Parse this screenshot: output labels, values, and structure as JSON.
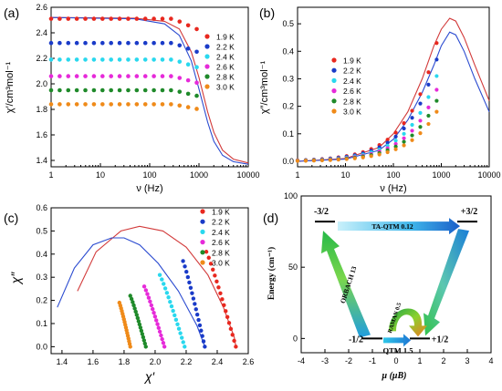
{
  "colors": {
    "1.9": "#e8281f",
    "2.2": "#1a3bc8",
    "2.4": "#29d8ee",
    "2.6": "#e62ad9",
    "2.8": "#1f8a2a",
    "3.0": "#ef8a19",
    "fit_red": "#d23a3a",
    "fit_blue": "#2b4bd0",
    "axis": "#000000"
  },
  "legend_labels": [
    "1.9 K",
    "2.2 K",
    "2.4 K",
    "2.6 K",
    "2.8 K",
    "3.0 K"
  ],
  "chart_data": [
    {
      "panel": "(a)",
      "type": "scatter",
      "xscale": "log",
      "xlabel": "ν (Hz)",
      "ylabel": "χ′/cm³mol⁻¹",
      "xlim": [
        1,
        10000
      ],
      "ylim": [
        1.35,
        2.6
      ],
      "xticks": [
        "1",
        "10",
        "100",
        "1000",
        "10000"
      ],
      "yticks": [
        "1.4",
        "1.6",
        "1.8",
        "2.0",
        "2.2",
        "2.4",
        "2.6"
      ],
      "legend": "right",
      "series": [
        {
          "name": "1.9 K",
          "level": 2.51
        },
        {
          "name": "2.2 K",
          "level": 2.32
        },
        {
          "name": "2.4 K",
          "level": 2.19
        },
        {
          "name": "2.6 K",
          "level": 2.06
        },
        {
          "name": "2.8 K",
          "level": 1.95
        },
        {
          "name": "3.0 K",
          "level": 1.84
        }
      ],
      "fits": [
        {
          "color": "fit_red",
          "x": [
            1,
            50,
            200,
            400,
            700,
            1000,
            1500,
            2000,
            3000,
            5000,
            10000
          ],
          "y": [
            2.52,
            2.515,
            2.49,
            2.43,
            2.25,
            2.05,
            1.78,
            1.62,
            1.48,
            1.41,
            1.38
          ]
        },
        {
          "color": "fit_blue",
          "x": [
            1,
            50,
            200,
            400,
            700,
            1000,
            1500,
            2000,
            3000,
            5000,
            10000
          ],
          "y": [
            2.52,
            2.51,
            2.47,
            2.38,
            2.18,
            1.96,
            1.7,
            1.55,
            1.44,
            1.39,
            1.37
          ]
        }
      ]
    },
    {
      "panel": "(b)",
      "type": "scatter",
      "xscale": "log",
      "xlabel": "ν (Hz)",
      "ylabel": "χ″/cm³mol⁻¹",
      "xlim": [
        1,
        10000
      ],
      "ylim": [
        -0.02,
        0.56
      ],
      "xticks": [
        "1",
        "10",
        "100",
        "1000",
        "10000"
      ],
      "yticks": [
        "0.0",
        "0.1",
        "0.2",
        "0.3",
        "0.4",
        "0.5"
      ],
      "legend": "left",
      "series": [
        {
          "name": "1.9 K",
          "amp": 0.43
        },
        {
          "name": "2.2 K",
          "amp": 0.37
        },
        {
          "name": "2.4 K",
          "amp": 0.31
        },
        {
          "name": "2.6 K",
          "amp": 0.26
        },
        {
          "name": "2.8 K",
          "amp": 0.22
        },
        {
          "name": "3.0 K",
          "amp": 0.18
        }
      ],
      "fits": [
        {
          "color": "fit_red",
          "x": [
            1,
            10,
            50,
            100,
            200,
            400,
            700,
            1000,
            1500,
            2000,
            3000,
            5000,
            10000
          ],
          "y": [
            0.0,
            0.01,
            0.05,
            0.1,
            0.18,
            0.3,
            0.42,
            0.48,
            0.52,
            0.51,
            0.45,
            0.35,
            0.22
          ]
        },
        {
          "color": "fit_blue",
          "x": [
            1,
            10,
            50,
            100,
            200,
            400,
            700,
            1000,
            1500,
            2000,
            3000,
            5000,
            10000
          ],
          "y": [
            0.0,
            0.008,
            0.04,
            0.08,
            0.15,
            0.25,
            0.35,
            0.42,
            0.47,
            0.46,
            0.4,
            0.3,
            0.18
          ]
        }
      ]
    },
    {
      "panel": "(c)",
      "type": "scatter",
      "xlabel": "χ′",
      "ylabel": "χ″",
      "xlim": [
        1.33,
        2.6
      ],
      "ylim": [
        -0.03,
        0.6
      ],
      "xticks": [
        "1.4",
        "1.6",
        "1.8",
        "2.0",
        "2.2",
        "2.4",
        "2.6"
      ],
      "yticks": [
        "0.0",
        "0.1",
        "0.2",
        "0.3",
        "0.4",
        "0.5",
        "0.6"
      ],
      "legend": "top-right",
      "series": [
        {
          "name": "1.9 K",
          "x_top": 2.33,
          "y_top": 0.41,
          "x_bot": 2.52,
          "y_bot": 0.0
        },
        {
          "name": "2.2 K",
          "x_top": 2.18,
          "y_top": 0.37,
          "x_bot": 2.32,
          "y_bot": 0.0
        },
        {
          "name": "2.4 K",
          "x_top": 2.03,
          "y_top": 0.31,
          "x_bot": 2.19,
          "y_bot": 0.0
        },
        {
          "name": "2.6 K",
          "x_top": 1.93,
          "y_top": 0.26,
          "x_bot": 2.06,
          "y_bot": 0.0
        },
        {
          "name": "2.8 K",
          "x_top": 1.84,
          "y_top": 0.22,
          "x_bot": 1.94,
          "y_bot": 0.0
        },
        {
          "name": "3.0 K",
          "x_top": 1.77,
          "y_top": 0.19,
          "x_bot": 1.84,
          "y_bot": 0.0
        }
      ],
      "fits": [
        {
          "color": "fit_red",
          "x": [
            1.5,
            1.62,
            1.78,
            1.9,
            2.05,
            2.2,
            2.34,
            2.44,
            2.51,
            2.52
          ],
          "y": [
            0.24,
            0.41,
            0.5,
            0.52,
            0.5,
            0.43,
            0.31,
            0.17,
            0.04,
            0.0
          ]
        },
        {
          "color": "fit_blue",
          "x": [
            1.37,
            1.48,
            1.6,
            1.72,
            1.8,
            1.9,
            2.02,
            2.15,
            2.27,
            2.32
          ],
          "y": [
            0.17,
            0.34,
            0.44,
            0.47,
            0.47,
            0.44,
            0.36,
            0.24,
            0.09,
            0.0
          ]
        }
      ]
    },
    {
      "panel": "(d)",
      "type": "diagram",
      "xlabel": "μ (μB)",
      "ylabel": "Energy (cm⁻¹)",
      "xlim": [
        -4,
        4
      ],
      "ylim": [
        -10,
        100
      ],
      "xticks": [
        "-4",
        "-3",
        "-2",
        "-1",
        "0",
        "1",
        "2",
        "3",
        "4"
      ],
      "yticks": [
        "0",
        "50",
        "100"
      ],
      "levels": [
        {
          "label": "-3/2",
          "mu": -3,
          "energy": 82
        },
        {
          "label": "+3/2",
          "mu": 3,
          "energy": 82
        },
        {
          "label": "-1/2",
          "mu": -1,
          "energy": 0
        },
        {
          "label": "+1/2",
          "mu": 1,
          "energy": 0
        }
      ],
      "transitions": [
        "TA-QTM 0.12",
        "ORBACH 13",
        "RAMAN 0.5",
        "QTM 1.5"
      ]
    }
  ]
}
